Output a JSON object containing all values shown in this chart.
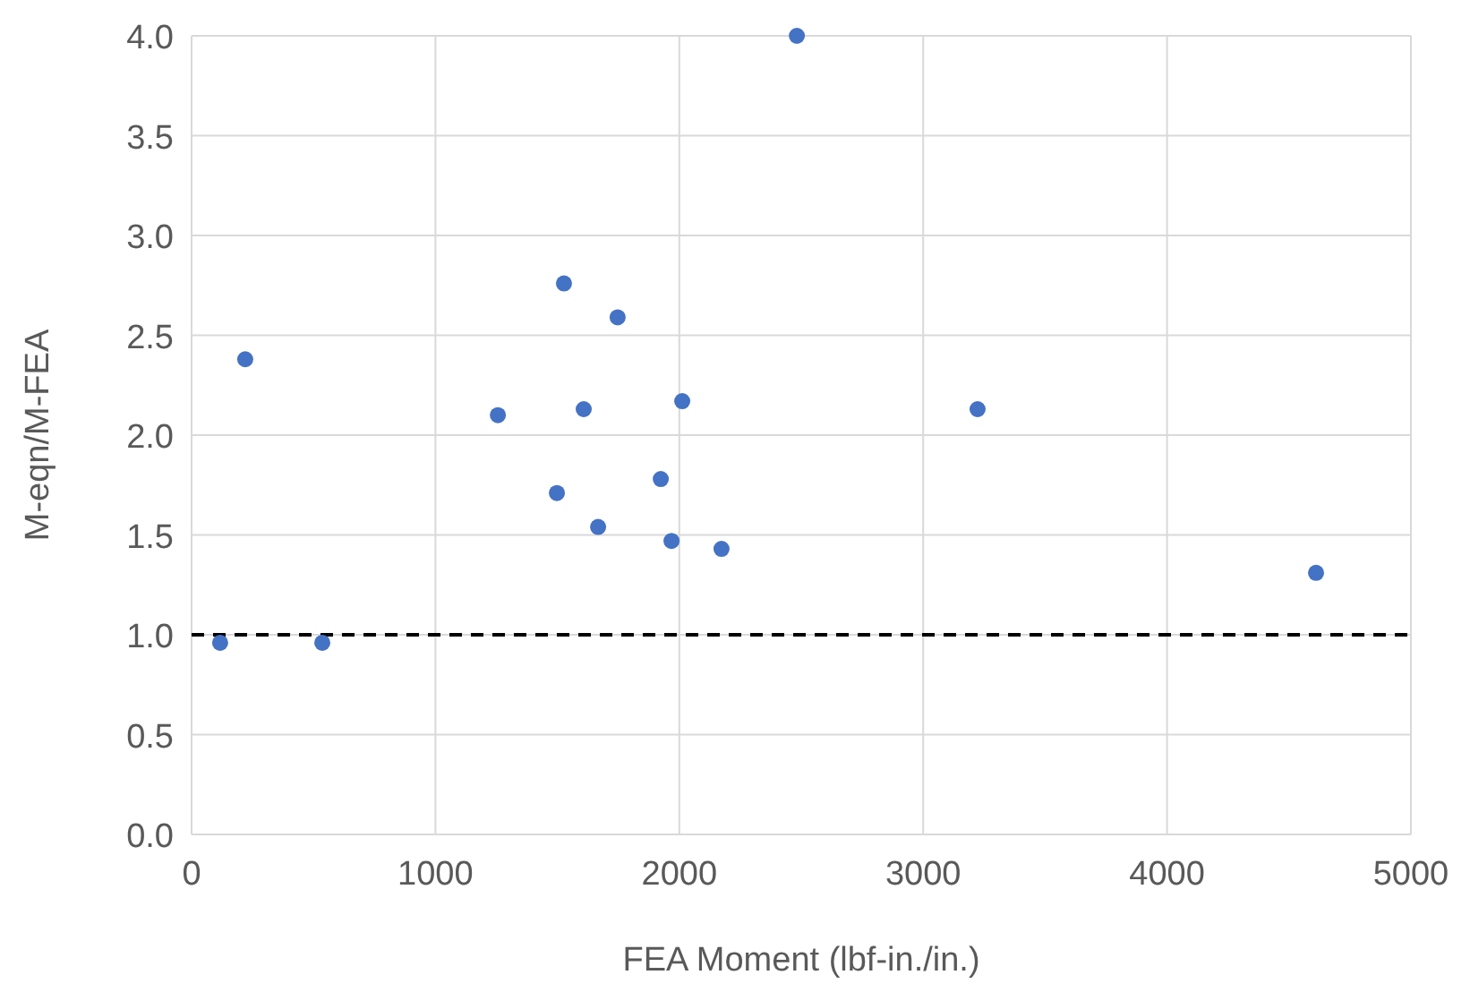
{
  "chart_data": {
    "type": "scatter",
    "xlabel": "FEA Moment (lbf-in./in.)",
    "ylabel": "M-eqn/M-FEA",
    "x": [
      117,
      220,
      536,
      1256,
      1498,
      1527,
      1608,
      1667,
      1747,
      1924,
      1968,
      2012,
      2173,
      2482,
      3223,
      4611
    ],
    "series": [
      {
        "color": "#4472c4",
        "values": [
          0.96,
          2.38,
          0.96,
          2.1,
          1.71,
          2.76,
          2.13,
          1.54,
          2.59,
          1.78,
          1.47,
          2.17,
          1.43,
          4.0,
          2.13,
          1.31
        ]
      }
    ],
    "xlim": [
      0,
      5000
    ],
    "xticks": [
      0,
      1000,
      2000,
      3000,
      4000,
      5000
    ],
    "ylim": [
      0,
      4
    ],
    "yticks": [
      {
        "value": 0,
        "label": "0.0"
      },
      {
        "value": 0.5,
        "label": "0.5"
      },
      {
        "value": 1,
        "label": "1.0"
      },
      {
        "value": 1.5,
        "label": "1.5"
      },
      {
        "value": 2,
        "label": "2.0"
      },
      {
        "value": 2.5,
        "label": "2.5"
      },
      {
        "value": 3,
        "label": "3.0"
      },
      {
        "value": 3.5,
        "label": "3.5"
      },
      {
        "value": 4,
        "label": "4.0"
      }
    ],
    "grid": true,
    "marker": "circle",
    "ref_lines": [
      {
        "axis": "y",
        "value": 1,
        "color": "#000000",
        "line_style": "dashed"
      }
    ]
  }
}
